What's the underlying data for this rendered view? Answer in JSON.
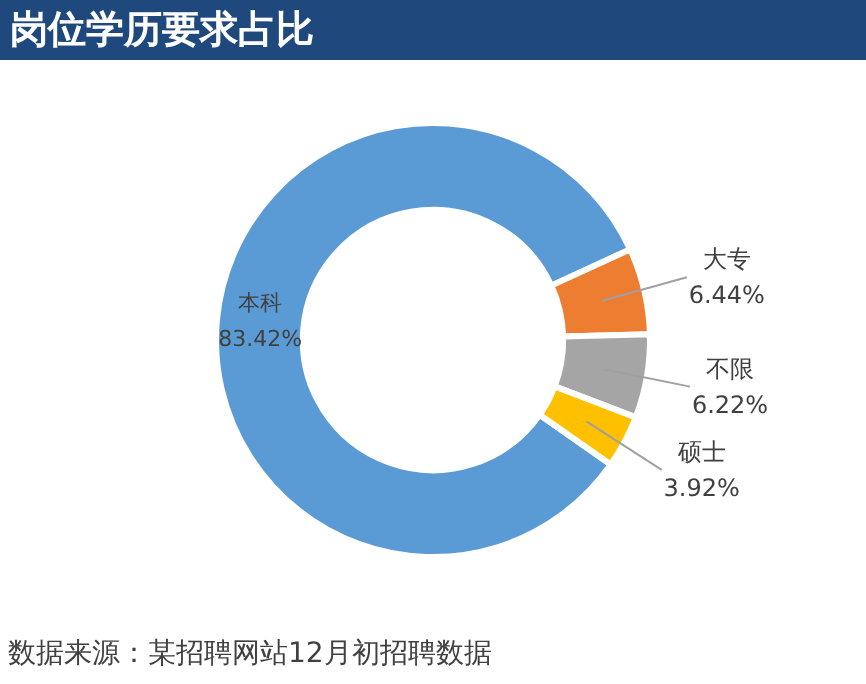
{
  "chart_data": {
    "type": "donut",
    "title": "岗位学历要求占比",
    "categories": [
      "本科",
      "大专",
      "不限",
      "硕士"
    ],
    "values": [
      83.42,
      6.44,
      6.22,
      3.92
    ],
    "value_labels": [
      "83.42%",
      "6.44%",
      "6.22%",
      "3.92%"
    ],
    "colors": [
      "#5b9bd5",
      "#ed7d31",
      "#a5a5a5",
      "#ffc000"
    ],
    "legend": false,
    "annotations": [
      "数据来源：某招聘网站12月初招聘数据"
    ]
  }
}
